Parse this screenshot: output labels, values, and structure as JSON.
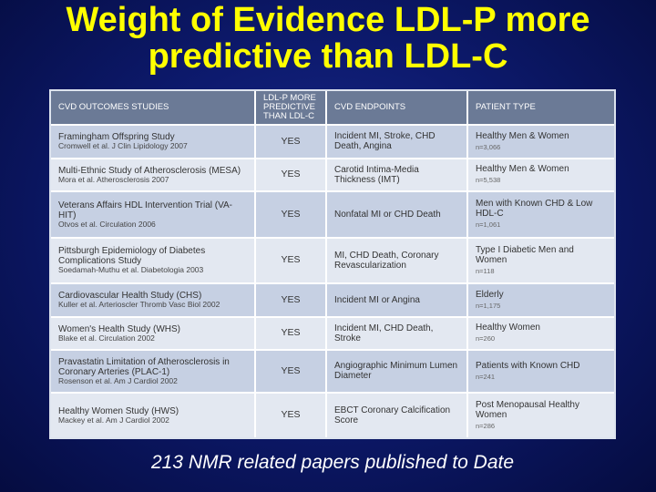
{
  "title": {
    "line1": "Weight of Evidence LDL-P more",
    "line2": "predictive than LDL-C"
  },
  "table": {
    "headers": [
      "CVD OUTCOMES STUDIES",
      "LDL-P MORE PREDICTIVE THAN LDL-C",
      "CVD ENDPOINTS",
      "PATIENT TYPE"
    ],
    "rows": [
      {
        "study": "Framingham Offspring Study",
        "cite": "Cromwell et al. J Clin Lipidology 2007",
        "result": "YES",
        "endpoint": "Incident MI, Stroke, CHD Death, Angina",
        "patient": "Healthy Men & Women",
        "n": "n=3,066"
      },
      {
        "study": "Multi-Ethnic Study of Atherosclerosis (MESA)",
        "cite": "Mora et al. Atherosclerosis 2007",
        "result": "YES",
        "endpoint": "Carotid Intima-Media Thickness (IMT)",
        "patient": "Healthy Men & Women",
        "n": "n=5,538"
      },
      {
        "study": "Veterans Affairs HDL Intervention Trial (VA-HIT)",
        "cite": "Otvos et al. Circulation 2006",
        "result": "YES",
        "endpoint": "Nonfatal MI or CHD Death",
        "patient": "Men with Known CHD & Low HDL-C",
        "n": "n=1,061"
      },
      {
        "study": "Pittsburgh Epidemiology of Diabetes Complications Study",
        "cite": "Soedamah-Muthu et al. Diabetologia 2003",
        "result": "YES",
        "endpoint": "MI, CHD Death, Coronary Revascularization",
        "patient": "Type I Diabetic Men and Women",
        "n": "n=118"
      },
      {
        "study": "Cardiovascular Health Study (CHS)",
        "cite": "Kuller et al. Arterioscler Thromb Vasc Biol 2002",
        "result": "YES",
        "endpoint": "Incident MI or Angina",
        "patient": "Elderly",
        "n": "n=1,175"
      },
      {
        "study": "Women's Health Study (WHS)",
        "cite": "Blake et al. Circulation 2002",
        "result": "YES",
        "endpoint": "Incident MI, CHD Death, Stroke",
        "patient": "Healthy Women",
        "n": "n=260"
      },
      {
        "study": "Pravastatin Limitation of Atherosclerosis in Coronary Arteries (PLAC-1)",
        "cite": "Rosenson et al. Am J Cardiol 2002",
        "result": "YES",
        "endpoint": "Angiographic Minimum Lumen Diameter",
        "patient": "Patients with Known CHD",
        "n": "n=241"
      },
      {
        "study": "Healthy Women Study (HWS)",
        "cite": "Mackey et al. Am J Cardiol 2002",
        "result": "YES",
        "endpoint": "EBCT Coronary Calcification Score",
        "patient": "Post Menopausal Healthy Women",
        "n": "n=286"
      }
    ]
  },
  "caption": "213 NMR related papers published to Date",
  "colors": {
    "title": "#ffff00",
    "header_bg": "#6b7a96",
    "row_dark": "#c6d0e3",
    "row_light": "#e3e8f1"
  }
}
